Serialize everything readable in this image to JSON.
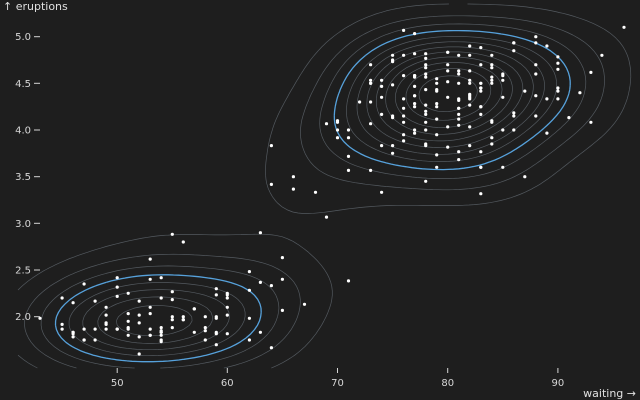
{
  "colors": {
    "background": "#1e1e1e",
    "points": "#ffffff",
    "contour": "#7f8a96",
    "contour_highlight": "#5aa9e6",
    "text": "#d6d6d6"
  },
  "chart_data": {
    "type": "scatter",
    "overlay": "density contours",
    "xlabel": "waiting →",
    "ylabel": "↑ eruptions",
    "xlim": [
      41,
      97
    ],
    "ylim": [
      1.45,
      5.35
    ],
    "x_ticks": [
      50,
      60,
      70,
      80,
      90
    ],
    "y_ticks": [
      2.0,
      2.5,
      3.0,
      3.5,
      4.0,
      4.5,
      5.0
    ],
    "x_tick_labels": [
      "50",
      "60",
      "70",
      "80",
      "90"
    ],
    "y_tick_labels": [
      "2.0",
      "2.5",
      "3.0",
      "3.5",
      "4.0",
      "4.5",
      "5.0"
    ],
    "grid": false,
    "contour_levels": 12,
    "highlight_levels": [
      4
    ],
    "points": [
      [
        79,
        3.6
      ],
      [
        54,
        1.8
      ],
      [
        74,
        3.333
      ],
      [
        62,
        2.283
      ],
      [
        85,
        4.533
      ],
      [
        55,
        2.883
      ],
      [
        88,
        4.7
      ],
      [
        85,
        3.6
      ],
      [
        51,
        1.95
      ],
      [
        85,
        4.35
      ],
      [
        54,
        1.833
      ],
      [
        84,
        3.917
      ],
      [
        78,
        4.2
      ],
      [
        47,
        1.75
      ],
      [
        83,
        4.7
      ],
      [
        52,
        2.167
      ],
      [
        62,
        1.75
      ],
      [
        84,
        4.8
      ],
      [
        52,
        1.6
      ],
      [
        79,
        4.25
      ],
      [
        51,
        1.8
      ],
      [
        47,
        1.75
      ],
      [
        78,
        3.45
      ],
      [
        69,
        3.067
      ],
      [
        74,
        4.533
      ],
      [
        83,
        3.6
      ],
      [
        55,
        1.967
      ],
      [
        76,
        4.083
      ],
      [
        78,
        3.85
      ],
      [
        79,
        4.433
      ],
      [
        73,
        4.3
      ],
      [
        77,
        4.467
      ],
      [
        66,
        3.367
      ],
      [
        80,
        4.033
      ],
      [
        74,
        3.833
      ],
      [
        52,
        2.017
      ],
      [
        48,
        1.867
      ],
      [
        80,
        4.833
      ],
      [
        59,
        1.833
      ],
      [
        90,
        4.783
      ],
      [
        80,
        4.35
      ],
      [
        58,
        1.883
      ],
      [
        84,
        4.567
      ],
      [
        58,
        1.75
      ],
      [
        73,
        4.533
      ],
      [
        83,
        3.317
      ],
      [
        64,
        3.833
      ],
      [
        53,
        2.1
      ],
      [
        82,
        4.633
      ],
      [
        59,
        2.0
      ],
      [
        75,
        4.8
      ],
      [
        90,
        4.716
      ],
      [
        54,
        1.833
      ],
      [
        80,
        4.833
      ],
      [
        54,
        1.733
      ],
      [
        83,
        4.883
      ],
      [
        71,
        3.717
      ],
      [
        64,
        1.667
      ],
      [
        77,
        4.567
      ],
      [
        81,
        4.317
      ],
      [
        59,
        2.233
      ],
      [
        84,
        4.5
      ],
      [
        48,
        1.75
      ],
      [
        82,
        4.8
      ],
      [
        60,
        1.817
      ],
      [
        92,
        4.4
      ],
      [
        78,
        4.167
      ],
      [
        78,
        4.7
      ],
      [
        65,
        2.067
      ],
      [
        73,
        4.7
      ],
      [
        82,
        4.033
      ],
      [
        56,
        1.967
      ],
      [
        79,
        4.5
      ],
      [
        71,
        4.0
      ],
      [
        62,
        1.983
      ],
      [
        76,
        5.067
      ],
      [
        60,
        2.017
      ],
      [
        78,
        4.567
      ],
      [
        76,
        3.883
      ],
      [
        83,
        3.6
      ],
      [
        75,
        4.133
      ],
      [
        82,
        4.333
      ],
      [
        70,
        4.1
      ],
      [
        65,
        2.633
      ],
      [
        73,
        4.067
      ],
      [
        88,
        4.933
      ],
      [
        76,
        3.95
      ],
      [
        80,
        4.517
      ],
      [
        48,
        2.167
      ],
      [
        86,
        4.0
      ],
      [
        60,
        2.2
      ],
      [
        90,
        4.333
      ],
      [
        50,
        1.867
      ],
      [
        78,
        4.817
      ],
      [
        63,
        1.833
      ],
      [
        72,
        4.3
      ],
      [
        84,
        4.667
      ],
      [
        75,
        3.75
      ],
      [
        51,
        1.867
      ],
      [
        82,
        4.9
      ],
      [
        62,
        2.483
      ],
      [
        88,
        4.367
      ],
      [
        49,
        2.1
      ],
      [
        83,
        4.5
      ],
      [
        81,
        4.05
      ],
      [
        47,
        1.867
      ],
      [
        84,
        4.7
      ],
      [
        52,
        1.783
      ],
      [
        86,
        4.85
      ],
      [
        81,
        3.683
      ],
      [
        75,
        4.733
      ],
      [
        59,
        2.3
      ],
      [
        89,
        4.9
      ],
      [
        79,
        4.417
      ],
      [
        59,
        1.7
      ],
      [
        81,
        4.633
      ],
      [
        50,
        2.317
      ],
      [
        85,
        4.6
      ],
      [
        59,
        1.817
      ],
      [
        87,
        4.417
      ],
      [
        53,
        2.617
      ],
      [
        69,
        4.067
      ],
      [
        77,
        4.25
      ],
      [
        56,
        1.967
      ],
      [
        88,
        4.6
      ],
      [
        81,
        3.767
      ],
      [
        45,
        1.917
      ],
      [
        82,
        4.5
      ],
      [
        55,
        2.267
      ],
      [
        90,
        4.65
      ],
      [
        45,
        1.867
      ],
      [
        83,
        4.167
      ],
      [
        56,
        2.8
      ],
      [
        89,
        4.333
      ],
      [
        46,
        1.833
      ],
      [
        82,
        4.383
      ],
      [
        51,
        1.883
      ],
      [
        86,
        4.933
      ],
      [
        53,
        2.033
      ],
      [
        79,
        3.733
      ],
      [
        81,
        4.233
      ],
      [
        60,
        2.233
      ],
      [
        82,
        4.533
      ],
      [
        77,
        4.817
      ],
      [
        76,
        4.333
      ],
      [
        59,
        1.983
      ],
      [
        80,
        4.633
      ],
      [
        49,
        2.017
      ],
      [
        96,
        5.1
      ],
      [
        53,
        1.8
      ],
      [
        77,
        5.033
      ],
      [
        77,
        4.0
      ],
      [
        65,
        2.4
      ],
      [
        81,
        4.6
      ],
      [
        71,
        3.567
      ],
      [
        70,
        4.0
      ],
      [
        81,
        4.5
      ],
      [
        93,
        4.083
      ],
      [
        53,
        1.8
      ],
      [
        89,
        3.967
      ],
      [
        45,
        2.2
      ],
      [
        86,
        4.15
      ],
      [
        58,
        2.0
      ],
      [
        78,
        3.833
      ],
      [
        66,
        3.5
      ],
      [
        76,
        4.583
      ],
      [
        63,
        2.367
      ],
      [
        88,
        5.0
      ],
      [
        52,
        1.933
      ],
      [
        93,
        4.617
      ],
      [
        49,
        1.917
      ],
      [
        57,
        2.083
      ],
      [
        77,
        4.583
      ],
      [
        68,
        3.333
      ],
      [
        81,
        4.167
      ],
      [
        81,
        4.333
      ],
      [
        73,
        4.5
      ],
      [
        50,
        2.417
      ],
      [
        85,
        4.0
      ],
      [
        74,
        4.167
      ],
      [
        55,
        1.883
      ],
      [
        77,
        4.583
      ],
      [
        83,
        4.25
      ],
      [
        83,
        3.767
      ],
      [
        51,
        2.033
      ],
      [
        78,
        4.433
      ],
      [
        84,
        4.083
      ],
      [
        46,
        1.833
      ],
      [
        83,
        4.417
      ],
      [
        55,
        2.183
      ],
      [
        81,
        4.8
      ],
      [
        57,
        1.833
      ],
      [
        76,
        4.8
      ],
      [
        84,
        4.1
      ],
      [
        77,
        3.966
      ],
      [
        81,
        4.233
      ],
      [
        87,
        3.5
      ],
      [
        77,
        4.366
      ],
      [
        51,
        2.25
      ],
      [
        78,
        4.667
      ],
      [
        60,
        2.1
      ],
      [
        82,
        4.35
      ],
      [
        91,
        4.133
      ],
      [
        53,
        1.867
      ],
      [
        78,
        4.6
      ],
      [
        46,
        1.783
      ],
      [
        77,
        4.367
      ],
      [
        84,
        3.85
      ],
      [
        49,
        1.933
      ],
      [
        83,
        4.5
      ],
      [
        71,
        2.383
      ],
      [
        80,
        4.7
      ],
      [
        49,
        1.867
      ],
      [
        75,
        3.833
      ],
      [
        64,
        3.417
      ],
      [
        76,
        4.233
      ],
      [
        53,
        2.4
      ],
      [
        94,
        4.8
      ],
      [
        55,
        2.0
      ],
      [
        76,
        4.15
      ],
      [
        50,
        1.867
      ],
      [
        82,
        4.267
      ],
      [
        54,
        1.75
      ],
      [
        75,
        4.483
      ],
      [
        78,
        4.0
      ],
      [
        79,
        4.117
      ],
      [
        78,
        4.083
      ],
      [
        78,
        4.267
      ],
      [
        70,
        3.917
      ],
      [
        79,
        4.55
      ],
      [
        70,
        4.083
      ],
      [
        54,
        2.417
      ],
      [
        86,
        4.183
      ],
      [
        50,
        2.217
      ],
      [
        90,
        4.45
      ],
      [
        54,
        1.883
      ],
      [
        54,
        1.85
      ],
      [
        77,
        4.283
      ],
      [
        79,
        3.95
      ],
      [
        64,
        2.333
      ],
      [
        75,
        4.15
      ],
      [
        47,
        2.35
      ],
      [
        86,
        4.933
      ],
      [
        63,
        2.9
      ],
      [
        85,
        4.583
      ],
      [
        82,
        3.833
      ],
      [
        57,
        2.083
      ],
      [
        82,
        4.367
      ],
      [
        67,
        2.133
      ],
      [
        74,
        4.35
      ],
      [
        54,
        2.2
      ],
      [
        83,
        4.45
      ],
      [
        73,
        3.567
      ],
      [
        73,
        4.5
      ],
      [
        88,
        4.15
      ],
      [
        80,
        3.817
      ],
      [
        71,
        3.917
      ],
      [
        83,
        4.45
      ],
      [
        56,
        2.0
      ],
      [
        79,
        4.283
      ],
      [
        78,
        4.767
      ],
      [
        84,
        4.533
      ],
      [
        58,
        1.85
      ],
      [
        83,
        4.25
      ],
      [
        43,
        1.983
      ],
      [
        60,
        2.25
      ],
      [
        75,
        4.75
      ],
      [
        81,
        4.117
      ],
      [
        46,
        2.15
      ],
      [
        90,
        4.417
      ],
      [
        46,
        1.817
      ],
      [
        74,
        4.467
      ]
    ]
  }
}
